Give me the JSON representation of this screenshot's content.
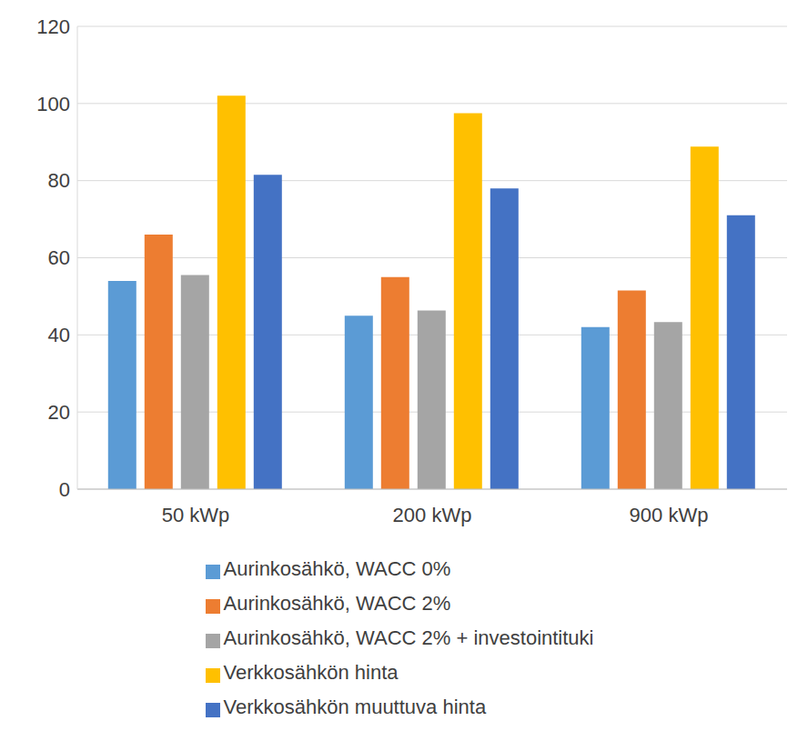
{
  "chart_data": {
    "type": "bar",
    "categories": [
      "50 kWp",
      "200 kWp",
      "900 kWp"
    ],
    "series": [
      {
        "name": "Aurinkosähkö, WACC 0%",
        "color": "#5b9bd5",
        "values": [
          54,
          45,
          42
        ]
      },
      {
        "name": "Aurinkosähkö, WACC 2%",
        "color": "#ed7d31",
        "values": [
          66,
          55,
          51.5
        ]
      },
      {
        "name": "Aurinkosähkö, WACC 2% + investointituki",
        "color": "#a5a5a5",
        "values": [
          55.5,
          46.3,
          43.3
        ]
      },
      {
        "name": "Verkkosähkön hinta",
        "color": "#ffc000",
        "values": [
          102,
          97.5,
          88.8
        ]
      },
      {
        "name": "Verkkosähkön muuttuva hinta",
        "color": "#4472c4",
        "values": [
          81.5,
          78,
          71
        ]
      }
    ],
    "ylim": [
      0,
      120
    ],
    "yticks": [
      0,
      20,
      40,
      60,
      80,
      100,
      120
    ],
    "grid": true,
    "legend": "bottom"
  }
}
